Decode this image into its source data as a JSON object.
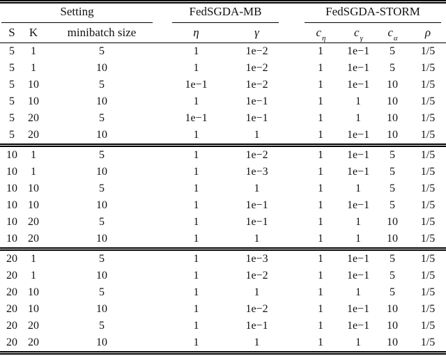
{
  "table": {
    "group_header": [
      {
        "label": "Setting"
      },
      {
        "label": "FedSGDA-MB"
      },
      {
        "label": "FedSGDA-STORM"
      }
    ],
    "columns": [
      {
        "key": "s",
        "label": "S"
      },
      {
        "key": "k",
        "label": "K"
      },
      {
        "key": "minibatch-size",
        "label": "minibatch size"
      },
      {
        "key": "eta",
        "label": "η"
      },
      {
        "key": "gamma",
        "label": "γ"
      },
      {
        "key": "c-eta",
        "label": "c",
        "sub": "η"
      },
      {
        "key": "c-gamma",
        "label": "c",
        "sub": "γ"
      },
      {
        "key": "c-alpha",
        "label": "c",
        "sub": "α"
      },
      {
        "key": "rho",
        "label": "ρ"
      }
    ],
    "blocks": [
      {
        "rows": [
          [
            "5",
            "1",
            "5",
            "1",
            "1e−2",
            "1",
            "1e−1",
            "5",
            "1/5"
          ],
          [
            "5",
            "1",
            "10",
            "1",
            "1e−2",
            "1",
            "1e−1",
            "5",
            "1/5"
          ],
          [
            "5",
            "10",
            "5",
            "1e−1",
            "1e−2",
            "1",
            "1e−1",
            "10",
            "1/5"
          ],
          [
            "5",
            "10",
            "10",
            "1",
            "1e−1",
            "1",
            "1",
            "10",
            "1/5"
          ],
          [
            "5",
            "20",
            "5",
            "1e−1",
            "1e−1",
            "1",
            "1",
            "10",
            "1/5"
          ],
          [
            "5",
            "20",
            "10",
            "1",
            "1",
            "1",
            "1e−1",
            "10",
            "1/5"
          ]
        ]
      },
      {
        "rows": [
          [
            "10",
            "1",
            "5",
            "1",
            "1e−2",
            "1",
            "1e−1",
            "5",
            "1/5"
          ],
          [
            "10",
            "1",
            "10",
            "1",
            "1e−3",
            "1",
            "1e−1",
            "5",
            "1/5"
          ],
          [
            "10",
            "10",
            "5",
            "1",
            "1",
            "1",
            "1",
            "5",
            "1/5"
          ],
          [
            "10",
            "10",
            "10",
            "1",
            "1e−1",
            "1",
            "1e−1",
            "5",
            "1/5"
          ],
          [
            "10",
            "20",
            "5",
            "1",
            "1e−1",
            "1",
            "1",
            "10",
            "1/5"
          ],
          [
            "10",
            "20",
            "10",
            "1",
            "1",
            "1",
            "1",
            "10",
            "1/5"
          ]
        ]
      },
      {
        "rows": [
          [
            "20",
            "1",
            "5",
            "1",
            "1e−3",
            "1",
            "1e−1",
            "5",
            "1/5"
          ],
          [
            "20",
            "1",
            "10",
            "1",
            "1e−2",
            "1",
            "1e−1",
            "5",
            "1/5"
          ],
          [
            "20",
            "10",
            "5",
            "1",
            "1",
            "1",
            "1",
            "5",
            "1/5"
          ],
          [
            "20",
            "10",
            "10",
            "1",
            "1e−2",
            "1",
            "1e−1",
            "10",
            "1/5"
          ],
          [
            "20",
            "20",
            "5",
            "1",
            "1e−1",
            "1",
            "1e−1",
            "10",
            "1/5"
          ],
          [
            "20",
            "20",
            "10",
            "1",
            "1",
            "1",
            "1",
            "10",
            "1/5"
          ]
        ]
      }
    ]
  }
}
